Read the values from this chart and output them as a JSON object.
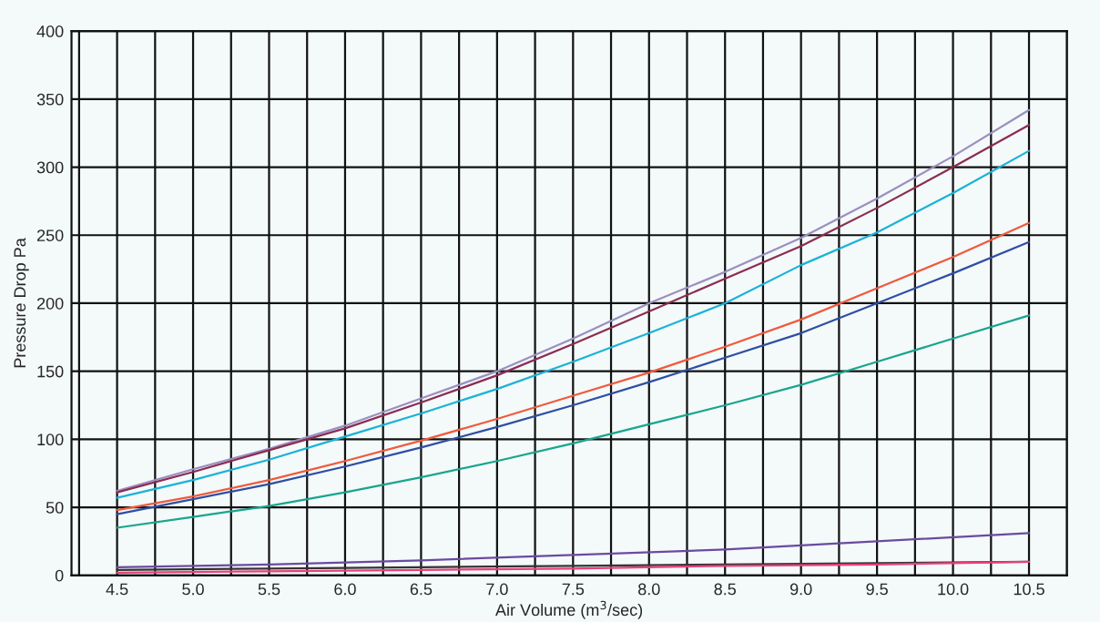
{
  "chart_data": {
    "type": "line",
    "xlabel": "Air Volume (m$^{3}$/sec)",
    "ylabel": "Pressure Drop Pa",
    "x": [
      4.5,
      5.0,
      5.5,
      6.0,
      6.5,
      7.0,
      7.5,
      8.0,
      8.5,
      9.0,
      9.5,
      10.0,
      10.5
    ],
    "series": [
      {
        "color": "#9b8fc0",
        "values": [
          62,
          78,
          93,
          110,
          130,
          150,
          174,
          200,
          223,
          248,
          277,
          308,
          342
        ]
      },
      {
        "color": "#8b2d52",
        "values": [
          61,
          76,
          92,
          108,
          127,
          147,
          170,
          194,
          218,
          242,
          270,
          300,
          331
        ]
      },
      {
        "color": "#1ab3d6",
        "values": [
          57,
          70,
          85,
          102,
          119,
          137,
          157,
          178,
          200,
          228,
          252,
          281,
          312
        ]
      },
      {
        "color": "#f05a3c",
        "values": [
          48,
          58,
          70,
          84,
          99,
          115,
          132,
          149,
          168,
          188,
          211,
          234,
          259
        ]
      },
      {
        "color": "#2e4fa3",
        "values": [
          45,
          56,
          67,
          80,
          94,
          109,
          125,
          142,
          160,
          178,
          200,
          222,
          245
        ]
      },
      {
        "color": "#18a68c",
        "values": [
          35,
          43,
          51,
          61,
          72,
          84,
          97,
          111,
          125,
          140,
          157,
          174,
          191
        ]
      },
      {
        "color": "#6a4ba0",
        "x": [
          4.5,
          5.5,
          6.5,
          7.5,
          8.5,
          9.5,
          10.5
        ],
        "values": [
          6,
          8,
          11,
          15,
          19,
          25,
          31
        ]
      },
      {
        "color": "#333333",
        "x": [
          4.5,
          5.5,
          6.5,
          7.5,
          8.5,
          9.5,
          10.5
        ],
        "values": [
          4,
          5,
          6,
          7,
          8,
          9,
          10
        ]
      },
      {
        "color": "#e8407a",
        "x": [
          4.5,
          5.5,
          6.5,
          7.5,
          8.5,
          9.5,
          10.5
        ],
        "values": [
          2,
          3,
          4,
          5,
          7,
          8,
          10
        ]
      }
    ],
    "xlim": [
      4.2,
      10.75
    ],
    "xticks": [
      {
        "value": 4.25,
        "label": null
      },
      4.5,
      {
        "value": 4.75,
        "label": null
      },
      {
        "value": 5,
        "label": "5.0"
      },
      {
        "value": 5.25,
        "label": null
      },
      5.5,
      {
        "value": 5.75,
        "label": null
      },
      {
        "value": 6,
        "label": "6.0"
      },
      {
        "value": 6.25,
        "label": null
      },
      6.5,
      {
        "value": 6.75,
        "label": null
      },
      {
        "value": 7,
        "label": "7.0"
      },
      {
        "value": 7.25,
        "label": null
      },
      7.5,
      {
        "value": 7.75,
        "label": null
      },
      {
        "value": 8,
        "label": "8.0"
      },
      {
        "value": 8.25,
        "label": null
      },
      8.5,
      {
        "value": 8.75,
        "label": null
      },
      {
        "value": 9,
        "label": "9.0"
      },
      {
        "value": 9.25,
        "label": null
      },
      9.5,
      {
        "value": 9.75,
        "label": null
      },
      {
        "value": 10,
        "label": "10.0"
      },
      {
        "value": 10.25,
        "label": null
      },
      10.5,
      {
        "value": 10.75,
        "label": null
      }
    ],
    "ylim": [
      0,
      400
    ],
    "yticks": [
      0,
      50,
      100,
      150,
      200,
      250,
      300,
      350,
      400
    ],
    "grid": true,
    "marker": "none",
    "line_style": "solid"
  }
}
